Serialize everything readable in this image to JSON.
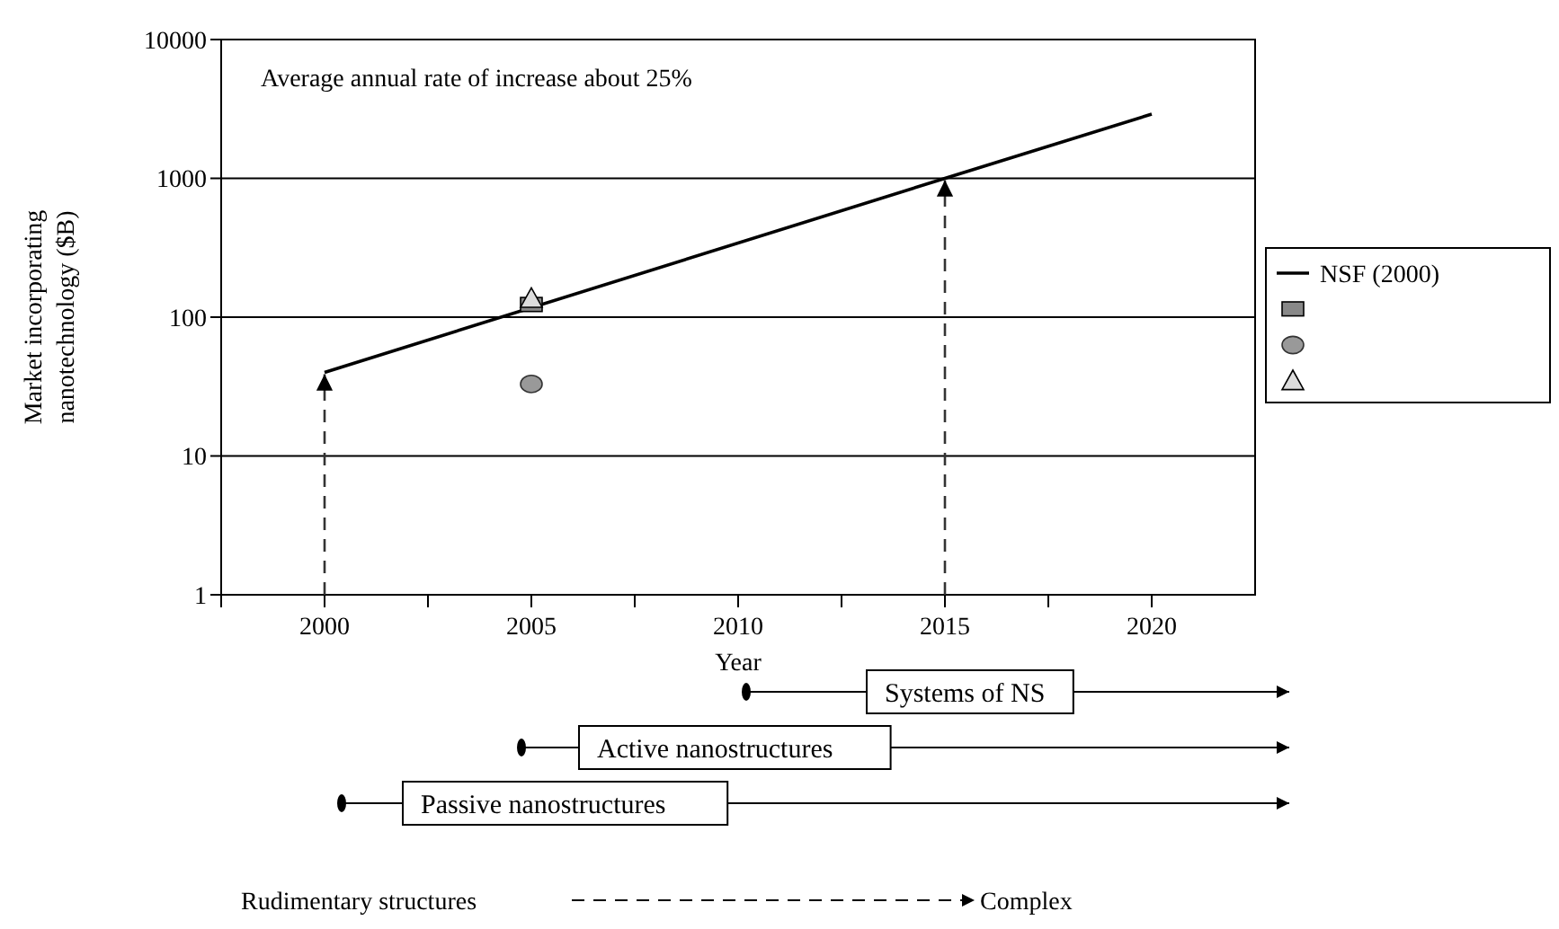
{
  "chart_data": {
    "type": "line",
    "xlabel": "Year",
    "ylabel": "Market incorporating\nnanotechnology ($B)",
    "xlim": [
      1997.5,
      2022.5
    ],
    "xticks": [
      {
        "value": 1997.5,
        "label": null
      },
      2000,
      {
        "value": 2002.5,
        "label": null
      },
      2005,
      {
        "value": 2007.5,
        "label": null
      },
      2010,
      {
        "value": 2012.5,
        "label": null
      },
      2015,
      {
        "value": 2017.5,
        "label": null
      },
      2020
    ],
    "ylim": [
      1,
      10000
    ],
    "yticks": [
      1,
      10,
      100,
      1000,
      10000
    ],
    "log": "y",
    "grid": "y",
    "legend": "right",
    "series": [
      {
        "name": "NSF (2000)",
        "color": "#000000",
        "marker": "none",
        "line_style": "solid",
        "x": [
          2000,
          2015,
          2020
        ],
        "values": [
          40,
          1000,
          2900
        ]
      },
      {
        "type": "scatter",
        "color": "#888888",
        "marker": "square",
        "x": [
          2005
        ],
        "values": [
          123
        ]
      },
      {
        "type": "scatter",
        "color": "#999999",
        "marker": "circle",
        "x": [
          2005
        ],
        "values": [
          33
        ]
      },
      {
        "type": "scatter",
        "color": "#dddddd",
        "marker": "triangle",
        "x": [
          2005
        ],
        "values": [
          136
        ]
      }
    ],
    "ref_lines": [
      {
        "axis": "x",
        "value": 2000,
        "line_style": "dashed",
        "color": "#333333"
      },
      {
        "axis": "x",
        "value": 2015,
        "line_style": "dashed",
        "color": "#333333"
      }
    ],
    "annotations": [
      "Average annual rate of increase about 25%",
      "Systems of NS",
      "Active nanostructures",
      "Passive nanostructures",
      "Rudimentary structures",
      "Complex"
    ]
  }
}
